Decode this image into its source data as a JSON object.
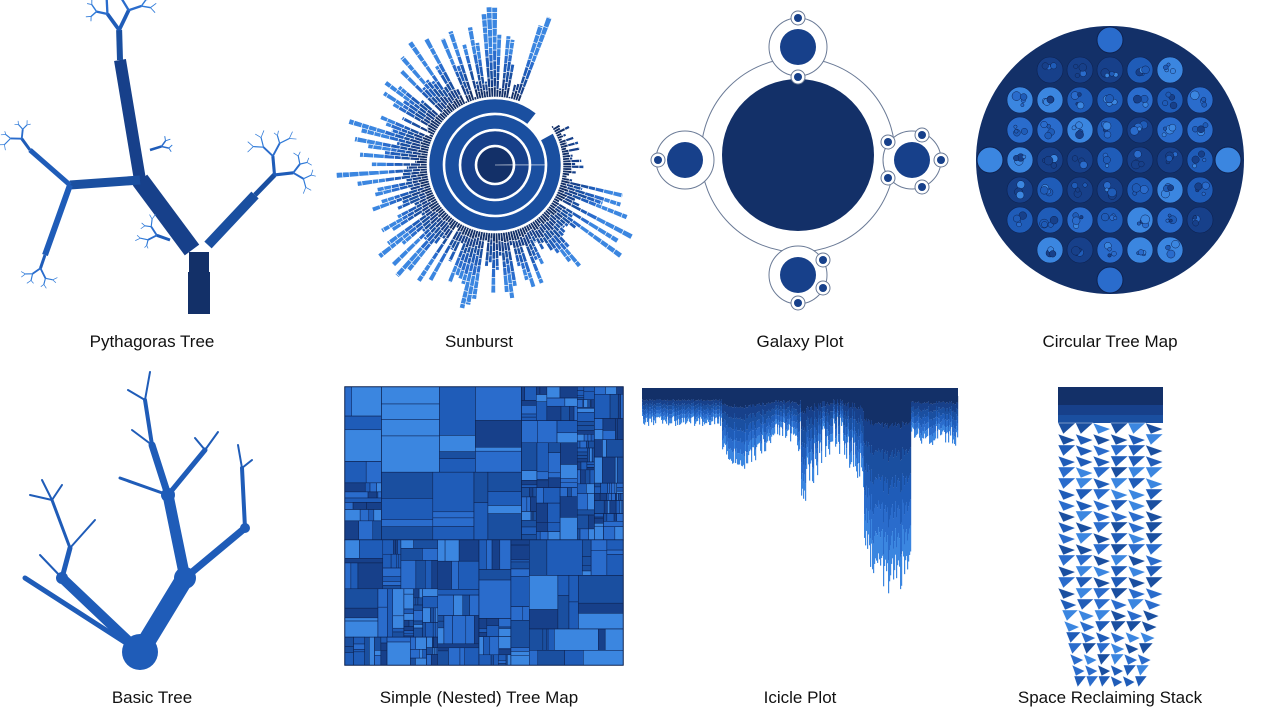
{
  "panels": [
    {
      "id": "pythagoras",
      "label": "Pythagoras Tree"
    },
    {
      "id": "sunburst",
      "label": "Sunburst"
    },
    {
      "id": "galaxy",
      "label": "Galaxy Plot"
    },
    {
      "id": "circular",
      "label": "Circular Tree Map"
    },
    {
      "id": "basic",
      "label": "Basic Tree"
    },
    {
      "id": "treemap",
      "label": "Simple (Nested) Tree Map"
    },
    {
      "id": "icicle",
      "label": "Icicle Plot"
    },
    {
      "id": "stack",
      "label": "Space Reclaiming Stack"
    }
  ],
  "colors": {
    "dark": "#133068",
    "mid": "#1a4fa0",
    "light": "#2a7ad6",
    "outline": "#6a7a96"
  }
}
